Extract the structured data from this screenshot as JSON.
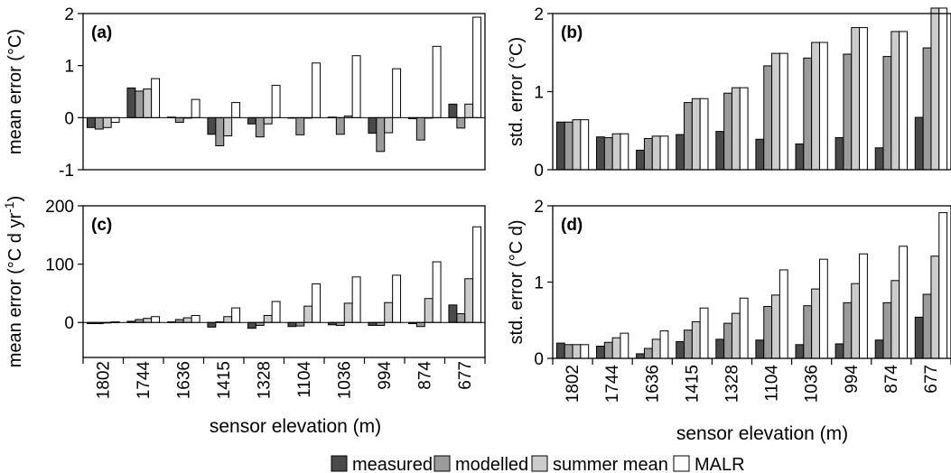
{
  "figure": {
    "xlabel": "sensor elevation (m)",
    "categories": [
      "1802",
      "1744",
      "1636",
      "1415",
      "1328",
      "1104",
      "1036",
      "994",
      "874",
      "677"
    ],
    "series_names": [
      "measured",
      "modelled",
      "summer mean",
      "MALR"
    ],
    "colors": [
      "#4a4a4a",
      "#9b9b9b",
      "#cccccc",
      "#ffffff"
    ]
  },
  "chart_data": [
    {
      "type": "bar",
      "panel": "(a)",
      "ylabel": "mean error (°C)",
      "ylim": [
        -1,
        2
      ],
      "yticks": [
        -1,
        0,
        1,
        2
      ],
      "categories": [
        "1802",
        "1744",
        "1636",
        "1415",
        "1328",
        "1104",
        "1036",
        "994",
        "874",
        "677"
      ],
      "series": [
        {
          "name": "measured",
          "values": [
            -0.19,
            0.57,
            0.01,
            -0.32,
            -0.12,
            -0.01,
            0.01,
            -0.3,
            -0.02,
            0.26
          ]
        },
        {
          "name": "modelled",
          "values": [
            -0.22,
            0.51,
            -0.09,
            -0.54,
            -0.37,
            -0.33,
            -0.32,
            -0.65,
            -0.43,
            -0.2
          ]
        },
        {
          "name": "summer mean",
          "values": [
            -0.19,
            0.55,
            0.0,
            -0.35,
            -0.12,
            0.0,
            0.03,
            -0.29,
            0.0,
            0.26
          ]
        },
        {
          "name": "MALR",
          "values": [
            -0.09,
            0.75,
            0.35,
            0.29,
            0.62,
            1.05,
            1.19,
            0.94,
            1.37,
            1.93
          ]
        }
      ]
    },
    {
      "type": "bar",
      "panel": "(b)",
      "ylabel": "std. error (°C)",
      "ylim": [
        0,
        2
      ],
      "yticks": [
        0,
        1,
        2
      ],
      "categories": [
        "1802",
        "1744",
        "1636",
        "1415",
        "1328",
        "1104",
        "1036",
        "994",
        "874",
        "677"
      ],
      "series": [
        {
          "name": "measured",
          "values": [
            0.61,
            0.42,
            0.25,
            0.45,
            0.49,
            0.39,
            0.33,
            0.41,
            0.28,
            0.67
          ]
        },
        {
          "name": "modelled",
          "values": [
            0.61,
            0.41,
            0.4,
            0.86,
            0.98,
            1.33,
            1.43,
            1.48,
            1.45,
            1.56
          ]
        },
        {
          "name": "summer mean",
          "values": [
            0.64,
            0.46,
            0.43,
            0.91,
            1.05,
            1.49,
            1.63,
            1.82,
            1.77,
            2.07
          ]
        },
        {
          "name": "MALR",
          "values": [
            0.64,
            0.46,
            0.43,
            0.91,
            1.05,
            1.49,
            1.63,
            1.82,
            1.77,
            2.07
          ]
        }
      ]
    },
    {
      "type": "bar",
      "panel": "(c)",
      "ylabel_main": "mean error (°C d yr",
      "ylabel_sup": "-1",
      "ylabel_end": ")",
      "ylim": [
        -60,
        200
      ],
      "yticks": [
        0,
        100,
        200
      ],
      "categories": [
        "1802",
        "1744",
        "1636",
        "1415",
        "1328",
        "1104",
        "1036",
        "994",
        "874",
        "677"
      ],
      "series": [
        {
          "name": "measured",
          "values": [
            -2,
            2,
            1,
            -8,
            -10,
            -7,
            -4,
            -5,
            -2,
            30
          ]
        },
        {
          "name": "modelled",
          "values": [
            -2,
            5,
            5,
            1,
            -5,
            -6,
            -5,
            -5,
            -7,
            15
          ]
        },
        {
          "name": "summer mean",
          "values": [
            0,
            7,
            8,
            10,
            12,
            28,
            33,
            34,
            41,
            75
          ]
        },
        {
          "name": "MALR",
          "values": [
            1,
            10,
            12,
            25,
            36,
            66,
            78,
            81,
            104,
            164
          ]
        }
      ]
    },
    {
      "type": "bar",
      "panel": "(d)",
      "ylabel": "std. error (°C d)",
      "ylim": [
        0,
        2
      ],
      "yticks": [
        0,
        1,
        2
      ],
      "categories": [
        "1802",
        "1744",
        "1636",
        "1415",
        "1328",
        "1104",
        "1036",
        "994",
        "874",
        "677"
      ],
      "series": [
        {
          "name": "measured",
          "values": [
            0.2,
            0.16,
            0.06,
            0.22,
            0.25,
            0.24,
            0.18,
            0.19,
            0.24,
            0.54
          ]
        },
        {
          "name": "modelled",
          "values": [
            0.18,
            0.21,
            0.13,
            0.37,
            0.46,
            0.68,
            0.69,
            0.73,
            0.73,
            0.84
          ]
        },
        {
          "name": "summer mean",
          "values": [
            0.18,
            0.27,
            0.25,
            0.48,
            0.59,
            0.83,
            0.91,
            0.98,
            1.02,
            1.34
          ]
        },
        {
          "name": "MALR",
          "values": [
            0.18,
            0.33,
            0.36,
            0.66,
            0.79,
            1.16,
            1.3,
            1.37,
            1.47,
            1.91
          ]
        }
      ]
    }
  ]
}
